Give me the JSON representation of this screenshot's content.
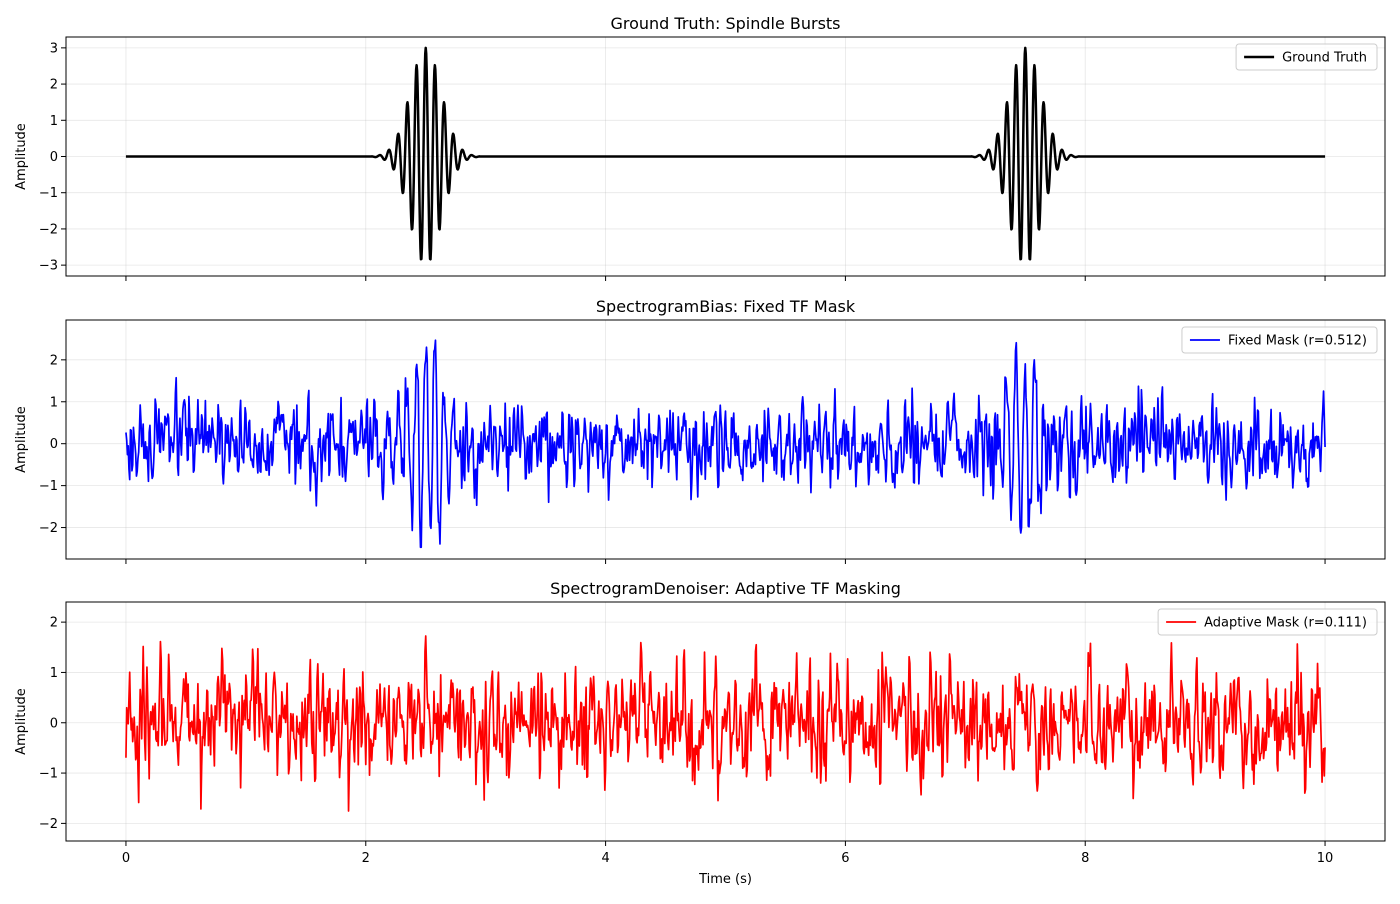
{
  "chart_data": [
    {
      "type": "line",
      "id": "ground-truth",
      "title": "Ground Truth: Spindle Bursts",
      "xlabel": "",
      "ylabel": "Amplitude",
      "xlim": [
        -0.5,
        10.5
      ],
      "ylim": [
        -3.3,
        3.3
      ],
      "xticks": [
        0,
        2,
        4,
        6,
        8,
        10
      ],
      "yticks": [
        -3,
        -2,
        -1,
        0,
        1,
        2,
        3
      ],
      "show_xtick_labels": false,
      "grid": true,
      "legend_position": "top-right",
      "series": [
        {
          "name": "Ground Truth",
          "color": "#000000",
          "line_width": 2.5,
          "signal": {
            "kind": "bursts",
            "duration": [
              0,
              10
            ],
            "samples": 2500,
            "bursts": [
              {
                "center": 2.5,
                "sigma": 0.13,
                "half_width": 0.45,
                "amplitude": 3.0,
                "frequency": 13
              },
              {
                "center": 7.5,
                "sigma": 0.13,
                "half_width": 0.45,
                "amplitude": 3.0,
                "frequency": 13
              }
            ]
          }
        }
      ]
    },
    {
      "type": "line",
      "id": "fixed-mask",
      "title": "SpectrogramBias: Fixed TF Mask",
      "xlabel": "",
      "ylabel": "Amplitude",
      "xlim": [
        -0.5,
        10.5
      ],
      "ylim": [
        -2.75,
        2.95
      ],
      "xticks": [
        0,
        2,
        4,
        6,
        8,
        10
      ],
      "yticks": [
        -2,
        -1,
        0,
        1,
        2
      ],
      "show_xtick_labels": false,
      "grid": true,
      "legend_position": "top-right",
      "series": [
        {
          "name": "Fixed Mask (r=0.512)",
          "color": "#0000ff",
          "line_width": 1.7,
          "signal": {
            "kind": "noisy",
            "duration": [
              0,
              10
            ],
            "samples": 1600,
            "noise_std": 0.42,
            "burst_gain": 0.75,
            "min": -2.47,
            "max": 2.7,
            "seed": 17
          }
        }
      ]
    },
    {
      "type": "line",
      "id": "adaptive-mask",
      "title": "SpectrogramDenoiser: Adaptive TF Masking",
      "xlabel": "Time (s)",
      "ylabel": "Amplitude",
      "xlim": [
        -0.5,
        10.5
      ],
      "ylim": [
        -2.35,
        2.4
      ],
      "xticks": [
        0,
        2,
        4,
        6,
        8,
        10
      ],
      "yticks": [
        -2,
        -1,
        0,
        1,
        2
      ],
      "show_xtick_labels": true,
      "grid": true,
      "legend_position": "top-right",
      "series": [
        {
          "name": "Adaptive Mask (r=0.111)",
          "color": "#ff0000",
          "line_width": 1.7,
          "signal": {
            "kind": "noisy",
            "duration": [
              0,
              10
            ],
            "samples": 1600,
            "noise_std": 0.5,
            "burst_gain": 0.1,
            "min": -2.13,
            "max": 2.22,
            "seed": 91
          }
        }
      ]
    }
  ]
}
